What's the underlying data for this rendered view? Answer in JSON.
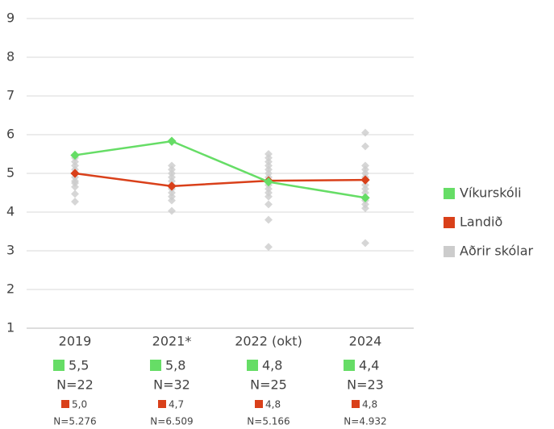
{
  "chart_data": {
    "type": "line",
    "categories": [
      "2019",
      "2021*",
      "2022 (okt)",
      "2024"
    ],
    "ylim": [
      1,
      9
    ],
    "yticks": [
      1,
      2,
      3,
      4,
      5,
      6,
      7,
      8,
      9
    ],
    "grid": true,
    "legend": "right",
    "series": [
      {
        "name": "Víkurskóli",
        "color": "#66dd66",
        "values": [
          5.47,
          5.83,
          4.78,
          4.37
        ],
        "value_labels": [
          "5,5",
          "5,8",
          "4,8",
          "4,4"
        ],
        "n_labels": [
          "N=22",
          "N=32",
          "N=25",
          "N=23"
        ]
      },
      {
        "name": "Landið",
        "color": "#d9401a",
        "values": [
          5.0,
          4.67,
          4.81,
          4.83
        ],
        "value_labels": [
          "5,0",
          "4,7",
          "4,8",
          "4,8"
        ],
        "n_labels": [
          "N=5.276",
          "N=6.509",
          "N=5.166",
          "N=4.932"
        ]
      },
      {
        "name": "Aðrir skólar",
        "color": "#cccccc",
        "values": [
          [
            4.27,
            4.47,
            4.65,
            4.75,
            4.8,
            4.9,
            5.0,
            5.1,
            5.2,
            5.3,
            5.4
          ],
          [
            4.03,
            4.3,
            4.4,
            4.5,
            4.6,
            4.7,
            4.8,
            4.9,
            5.0,
            5.1,
            5.2
          ],
          [
            3.1,
            3.8,
            4.2,
            4.4,
            4.5,
            4.6,
            4.7,
            4.8,
            4.9,
            5.0,
            5.1,
            5.2,
            5.3,
            5.4,
            5.5
          ],
          [
            3.2,
            4.1,
            4.2,
            4.3,
            4.5,
            4.6,
            4.7,
            4.9,
            5.0,
            5.1,
            5.2,
            5.7,
            6.05
          ]
        ]
      }
    ]
  }
}
